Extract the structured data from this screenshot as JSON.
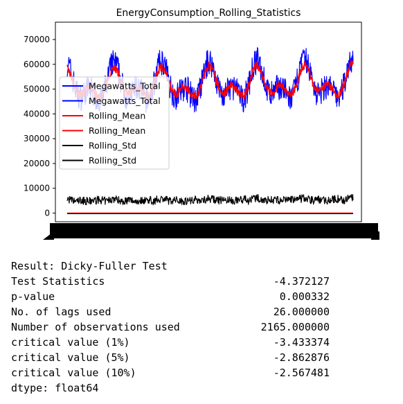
{
  "chart_data": {
    "type": "line",
    "title": "EnergyConsumption_Rolling_Statistics",
    "xlabel": "",
    "ylabel": "",
    "ylim": [
      -3500,
      77000
    ],
    "yticks": [
      0,
      10000,
      20000,
      30000,
      40000,
      50000,
      60000,
      70000
    ],
    "ytick_labels": [
      "0",
      "10000",
      "20000",
      "30000",
      "40000",
      "50000",
      "60000",
      "70000"
    ],
    "n_points": 2191,
    "legend": {
      "placement": "center-left",
      "entries": [
        {
          "label": "Megawatts_Total",
          "color": "#0000ff"
        },
        {
          "label": "Megawatts_Total",
          "color": "#0000ff"
        },
        {
          "label": "Rolling_Mean",
          "color": "#ff0000"
        },
        {
          "label": "Rolling_Mean",
          "color": "#ff0000"
        },
        {
          "label": "Rolling_Std",
          "color": "#000000"
        },
        {
          "label": "Rolling_Std",
          "color": "#000000"
        }
      ]
    },
    "series": [
      {
        "key": "megawatts",
        "color": "#0000ff",
        "level": [
          51000,
          52500
        ],
        "amplitude": 9500,
        "min": 38000,
        "max": 74000
      },
      {
        "key": "rolling_mean",
        "color": "#ff0000",
        "level": [
          51000,
          52500
        ],
        "amplitude": 7500
      },
      {
        "key": "rolling_std",
        "color": "#000000",
        "level": [
          4000,
          4500
        ],
        "amplitude": 1200,
        "min": 1000,
        "max": 9500
      },
      {
        "key": "zero_line",
        "color": "#ff0000",
        "value": 0
      }
    ],
    "grid": false
  },
  "output": {
    "header": "Result: Dicky-Fuller Test",
    "rows": [
      {
        "label": "Test Statistics",
        "value": "-4.372127"
      },
      {
        "label": "p-value",
        "value": "0.000332"
      },
      {
        "label": "No. of lags used",
        "value": "26.000000"
      },
      {
        "label": "Number of observations used",
        "value": "2165.000000"
      },
      {
        "label": "critical value (1%)",
        "value": "-3.433374"
      },
      {
        "label": "critical value (5%)",
        "value": "-2.862876"
      },
      {
        "label": "critical value (10%)",
        "value": "-2.567481"
      }
    ],
    "footer": "dtype: float64"
  }
}
